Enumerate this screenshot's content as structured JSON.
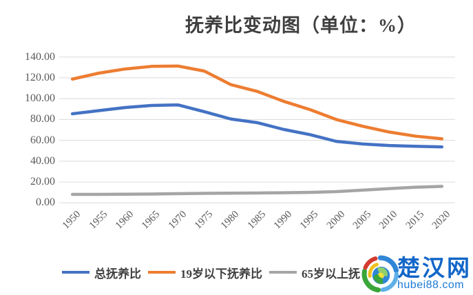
{
  "chart_data": {
    "type": "line",
    "title": "抚养比变动图（单位：%）",
    "categories": [
      "1950",
      "1955",
      "1960",
      "1965",
      "1970",
      "1975",
      "1980",
      "1985",
      "1990",
      "1995",
      "2000",
      "2005",
      "2010",
      "2015",
      "2020"
    ],
    "series": [
      {
        "name": "总抚养比",
        "color": "#4472C4",
        "values": [
          85.5,
          88.5,
          91.5,
          93.5,
          94.0,
          87.5,
          80.5,
          77.0,
          70.5,
          65.5,
          59.0,
          56.5,
          55.0,
          54.3,
          53.7
        ]
      },
      {
        "name": "19岁以下抚养比",
        "color": "#ED7D31",
        "values": [
          118.8,
          124.5,
          128.5,
          131.0,
          131.3,
          126.5,
          113.5,
          107.0,
          97.5,
          89.5,
          80.0,
          73.5,
          68.0,
          64.0,
          61.5
        ]
      },
      {
        "name": "65岁以上抚养比",
        "color": "#A5A5A5",
        "values": [
          8.1,
          8.1,
          8.3,
          8.5,
          8.8,
          9.1,
          9.3,
          9.5,
          9.7,
          10.0,
          10.8,
          12.2,
          13.7,
          15.0,
          15.8
        ]
      }
    ],
    "xlabel": "",
    "ylabel": "",
    "ylim": [
      0,
      140
    ],
    "y_tick_step": 20,
    "y_tick_labels": [
      "0.00",
      "20.00",
      "40.00",
      "60.00",
      "80.00",
      "100.00",
      "120.00",
      "140.00"
    ],
    "grid": true,
    "gridline_color": "#D9D9D9",
    "axis_label_color": "#595959",
    "legend_position": "bottom",
    "line_width": 4.5
  },
  "logo": {
    "site_name": "楚汉网",
    "domain": "hubei88.com",
    "brand_color": "#1266c8"
  }
}
